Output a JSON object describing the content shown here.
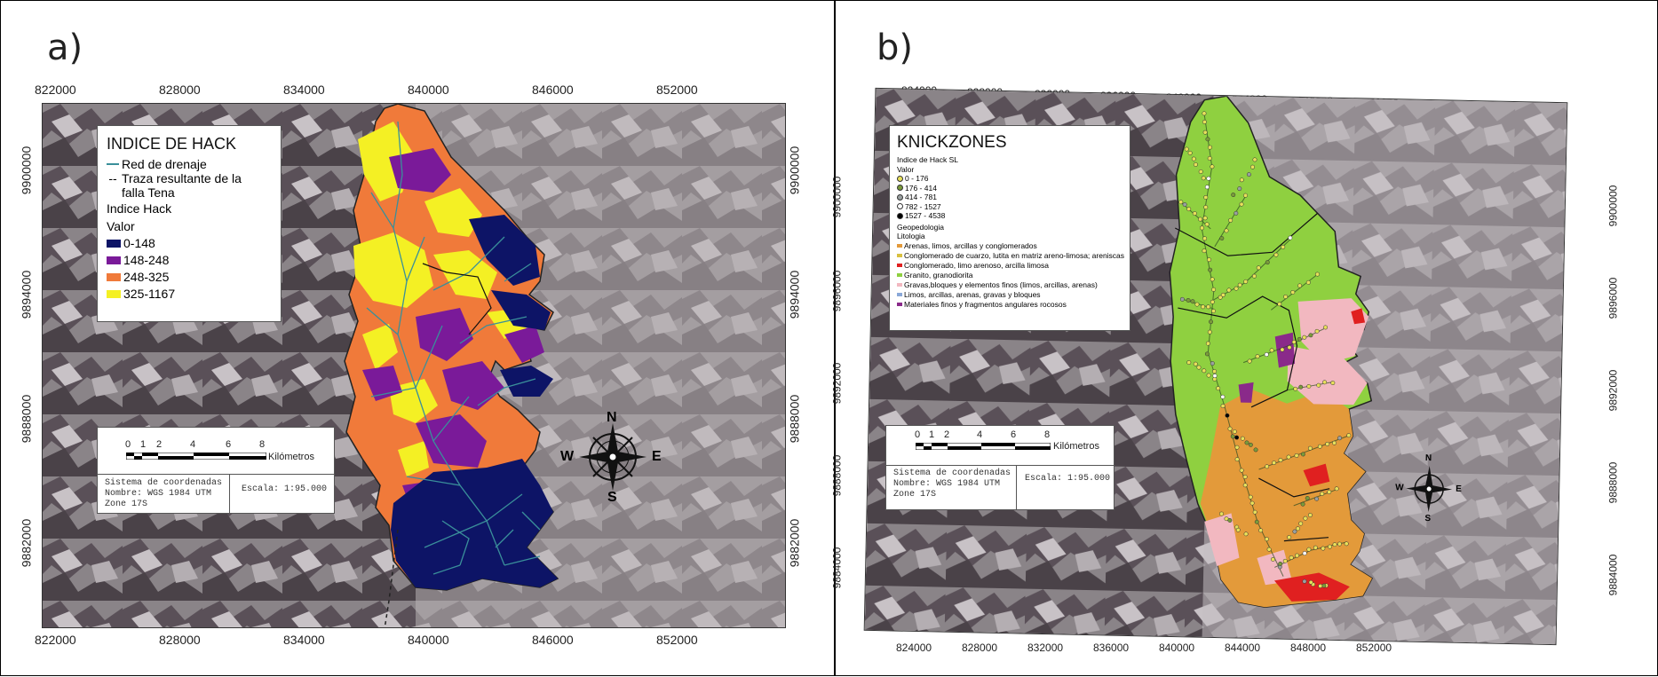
{
  "panel_a": {
    "label": "a)",
    "x_ticks": [
      "822000",
      "828000",
      "834000",
      "840000",
      "846000",
      "852000"
    ],
    "y_ticks": [
      "9900000",
      "9894000",
      "9888000",
      "9882000"
    ],
    "legend": {
      "title": "INDICE DE HACK",
      "drainage": "Red de drenaje",
      "fault_line1": "Traza resultante de la",
      "fault_line2": "falla Tena",
      "subtitle": "Indice Hack",
      "value_label": "Valor",
      "classes": [
        {
          "label": "0-148",
          "color": "#0d1466"
        },
        {
          "label": "148-248",
          "color": "#7a1a99"
        },
        {
          "label": "248-325",
          "color": "#f07a3a"
        },
        {
          "label": "325-1167",
          "color": "#f4f024"
        }
      ],
      "drainage_color": "#3a8f9a"
    },
    "scale": {
      "ticks": [
        "0",
        "1",
        "2",
        "4",
        "6",
        "8"
      ],
      "unit": "Kilómetros",
      "coord_line1": "Sistema de coordenadas",
      "coord_line2": "Nombre: WGS 1984 UTM",
      "coord_line3": "Zone 17S",
      "scale_text": "Escala: 1:95.000"
    },
    "compass": {
      "n": "N",
      "s": "S",
      "e": "E",
      "w": "W"
    }
  },
  "panel_b": {
    "label": "b)",
    "x_ticks": [
      "824000",
      "828000",
      "832000",
      "836000",
      "840000",
      "844000",
      "848000",
      "852000"
    ],
    "y_ticks": [
      "9900000",
      "9896000",
      "9892000",
      "9888000",
      "9884000"
    ],
    "legend": {
      "title": "KNICKZONES",
      "subtitle": "Indice de Hack SL",
      "value_label": "Valor",
      "points": [
        {
          "label": "0 - 176",
          "color": "#e8e05a"
        },
        {
          "label": "176 - 414",
          "color": "#7a9a3a"
        },
        {
          "label": "414 - 781",
          "color": "#9aa0a0"
        },
        {
          "label": "782 - 1527",
          "color": "#ffffff"
        },
        {
          "label": "1527 - 4538",
          "color": "#000000"
        }
      ],
      "geo_label": "Geopedologia",
      "lito_label": "Litologia",
      "lithology": [
        {
          "label": "Arenas, limos, arcillas y conglomerados",
          "color": "#e39a3a"
        },
        {
          "label": "Conglomerado de cuarzo, lutita en matriz areno-limosa; areniscas",
          "color": "#d8c040"
        },
        {
          "label": "Conglomerado, limo arenoso, arcilla limosa",
          "color": "#e02020"
        },
        {
          "label": "Granito, granodiorita",
          "color": "#8fd040"
        },
        {
          "label": "Gravas,bloques y elementos finos (limos, arcillas, arenas)",
          "color": "#f2b8c0"
        },
        {
          "label": "Limos, arcillas, arenas, gravas y bloques",
          "color": "#8aa8d8"
        },
        {
          "label": "Materiales finos y fragmentos angulares rocosos",
          "color": "#8a2a8a"
        }
      ]
    },
    "scale": {
      "ticks": [
        "0",
        "1",
        "2",
        "4",
        "6",
        "8"
      ],
      "unit": "Kilómetros",
      "coord_line1": "Sistema de coordenadas",
      "coord_line2": "Nombre: WGS 1984 UTM",
      "coord_line3": "Zone 17S",
      "scale_text": "Escala: 1:95.000"
    },
    "compass": {
      "n": "N",
      "s": "S",
      "e": "E",
      "w": "W"
    }
  }
}
